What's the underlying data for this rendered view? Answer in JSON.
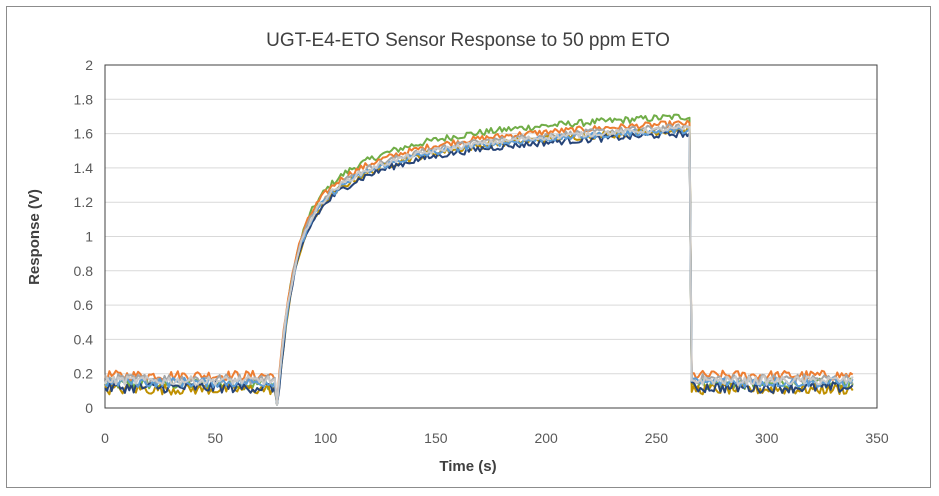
{
  "chart_data": {
    "type": "line",
    "title": "UGT-E4-ETO Sensor Response to 50 ppm ETO",
    "xlabel": "Time (s)",
    "ylabel": "Response (V)",
    "xlim": [
      0,
      350
    ],
    "ylim": [
      0,
      2
    ],
    "x_ticks": [
      "0",
      "50",
      "100",
      "150",
      "200",
      "250",
      "300",
      "350"
    ],
    "y_ticks": [
      "0",
      "0.2",
      "0.4",
      "0.6",
      "0.8",
      "1",
      "1.2",
      "1.4",
      "1.6",
      "1.8",
      "2"
    ],
    "grid": true,
    "legend": "none",
    "model": {
      "gas_on_s": 79,
      "gas_off_s": 265,
      "end_s": 339,
      "sample_step_s": 1,
      "time_constant_s": 32
    },
    "series": [
      {
        "color": "#70ad47",
        "baseline": 0.14,
        "plateau": 1.7,
        "noise": 0.02
      },
      {
        "color": "#ed7d31",
        "baseline": 0.19,
        "plateau": 1.66,
        "noise": 0.018
      },
      {
        "color": "#a5a5a5",
        "baseline": 0.17,
        "plateau": 1.64,
        "noise": 0.018
      },
      {
        "color": "#bf9000",
        "baseline": 0.11,
        "plateau": 1.62,
        "noise": 0.02
      },
      {
        "color": "#264478",
        "baseline": 0.12,
        "plateau": 1.6,
        "noise": 0.02
      },
      {
        "color": "#5b9bd5",
        "baseline": 0.15,
        "plateau": 1.62,
        "noise": 0.018
      },
      {
        "color": "#c9c9c9",
        "baseline": 0.16,
        "plateau": 1.63,
        "noise": 0.016
      }
    ]
  }
}
